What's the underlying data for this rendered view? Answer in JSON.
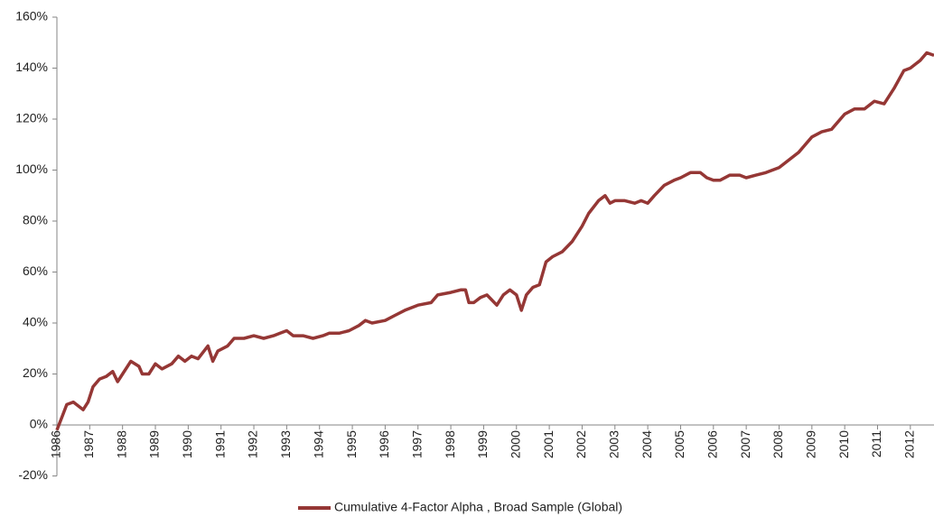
{
  "chart_data": {
    "type": "line",
    "x": [
      1986.0,
      1986.15,
      1986.3,
      1986.5,
      1986.7,
      1986.8,
      1986.95,
      1987.1,
      1987.3,
      1987.5,
      1987.7,
      1987.85,
      1988.0,
      1988.25,
      1988.5,
      1988.6,
      1988.8,
      1989.0,
      1989.2,
      1989.5,
      1989.7,
      1989.9,
      1990.1,
      1990.3,
      1990.6,
      1990.75,
      1990.9,
      1991.2,
      1991.4,
      1991.7,
      1992.0,
      1992.3,
      1992.6,
      1992.8,
      1993.0,
      1993.2,
      1993.5,
      1993.8,
      1994.1,
      1994.3,
      1994.6,
      1994.9,
      1995.2,
      1995.4,
      1995.6,
      1996.0,
      1996.3,
      1996.6,
      1997.0,
      1997.4,
      1997.6,
      1998.0,
      1998.3,
      1998.45,
      1998.55,
      1998.7,
      1998.9,
      1999.1,
      1999.4,
      1999.6,
      1999.8,
      2000.0,
      2000.15,
      2000.3,
      2000.5,
      2000.7,
      2000.9,
      2001.1,
      2001.4,
      2001.7,
      2002.0,
      2002.2,
      2002.5,
      2002.7,
      2002.85,
      2003.0,
      2003.3,
      2003.6,
      2003.8,
      2004.0,
      2004.2,
      2004.5,
      2004.8,
      2005.0,
      2005.3,
      2005.6,
      2005.8,
      2006.0,
      2006.2,
      2006.5,
      2006.8,
      2007.0,
      2007.3,
      2007.6,
      2008.0,
      2008.3,
      2008.6,
      2009.0,
      2009.3,
      2009.6,
      2010.0,
      2010.3,
      2010.6,
      2010.9,
      2011.2,
      2011.5,
      2011.8,
      2012.0,
      2012.3,
      2012.5,
      2012.72
    ],
    "series": [
      {
        "name": "Cumulative 4-Factor Alpha , Broad Sample (Global)",
        "color": "#953735",
        "values": [
          -2,
          3,
          8,
          9,
          7,
          6,
          9,
          15,
          18,
          19,
          21,
          17,
          20,
          25,
          23,
          20,
          20,
          24,
          22,
          24,
          27,
          25,
          27,
          26,
          31,
          25,
          29,
          31,
          34,
          34,
          35,
          34,
          35,
          36,
          37,
          35,
          35,
          34,
          35,
          36,
          36,
          37,
          39,
          41,
          40,
          41,
          43,
          45,
          47,
          48,
          51,
          52,
          53,
          53,
          48,
          48,
          50,
          51,
          47,
          51,
          53,
          51,
          45,
          51,
          54,
          55,
          64,
          66,
          68,
          72,
          78,
          83,
          88,
          90,
          87,
          88,
          88,
          87,
          88,
          87,
          90,
          94,
          96,
          97,
          99,
          99,
          97,
          96,
          96,
          98,
          98,
          97,
          98,
          99,
          101,
          104,
          107,
          113,
          115,
          116,
          122,
          124,
          124,
          127,
          126,
          132,
          139,
          140,
          143,
          146,
          145
        ]
      }
    ],
    "xlim": [
      1986,
      2012.72
    ],
    "xticks": [
      1986,
      1987,
      1988,
      1989,
      1990,
      1991,
      1992,
      1993,
      1994,
      1995,
      1996,
      1997,
      1998,
      1999,
      2000,
      2001,
      2002,
      2003,
      2004,
      2005,
      2006,
      2007,
      2008,
      2009,
      2010,
      2011,
      2012
    ],
    "ylim": [
      -20,
      160
    ],
    "yticks": [
      {
        "value": -20,
        "label": "-20%"
      },
      {
        "value": 0,
        "label": "0%"
      },
      {
        "value": 20,
        "label": "20%"
      },
      {
        "value": 40,
        "label": "40%"
      },
      {
        "value": 60,
        "label": "60%"
      },
      {
        "value": 80,
        "label": "80%"
      },
      {
        "value": 100,
        "label": "100%"
      },
      {
        "value": 120,
        "label": "120%"
      },
      {
        "value": 140,
        "label": "140%"
      },
      {
        "value": 160,
        "label": "160%"
      }
    ],
    "grid": false,
    "legend": "bottom"
  }
}
